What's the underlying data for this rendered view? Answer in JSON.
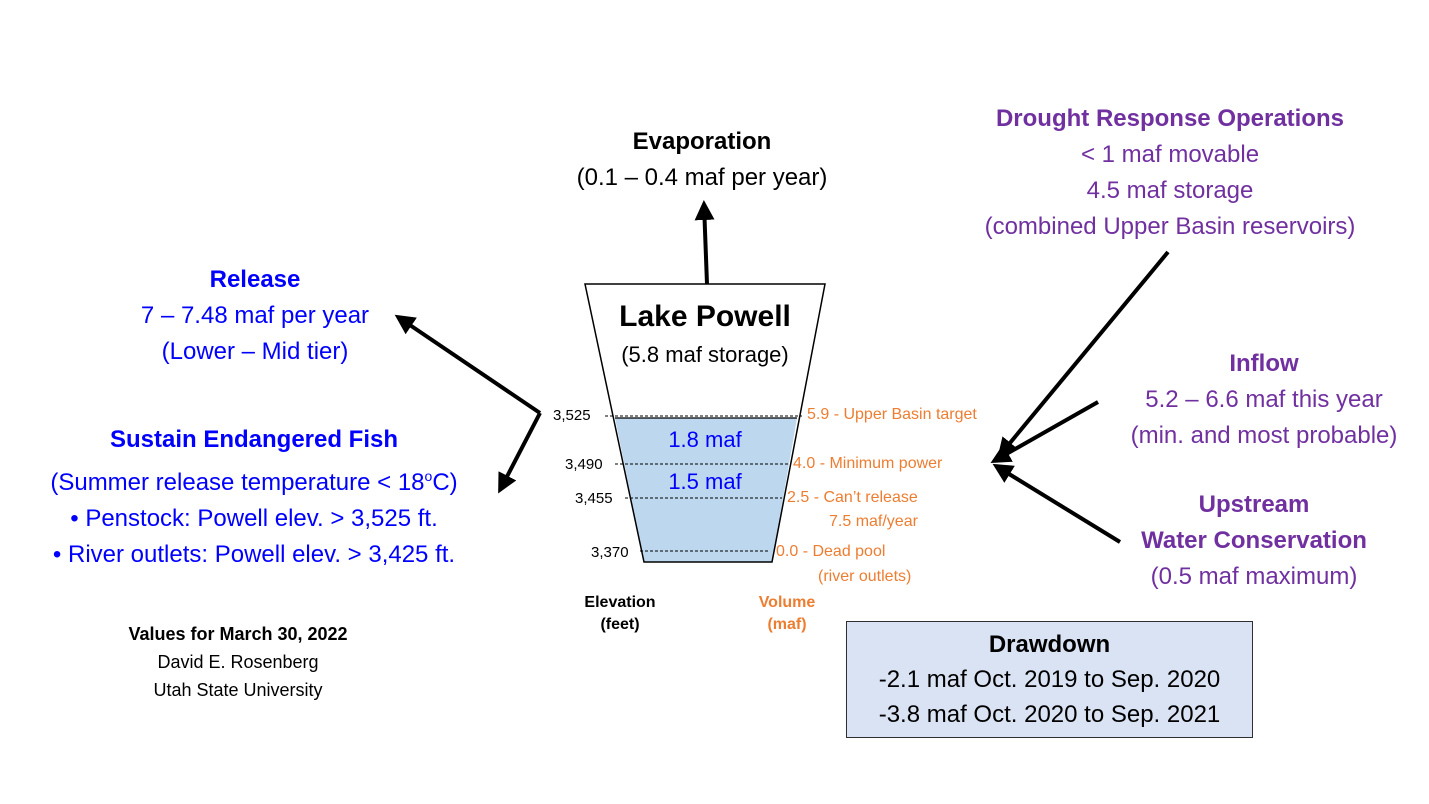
{
  "evaporation": {
    "title": "Evaporation",
    "detail": "(0.1 – 0.4 maf per year)"
  },
  "drought": {
    "title": "Drought Response Operations",
    "line1": "< 1 maf movable",
    "line2": "4.5 maf storage",
    "line3": "(combined Upper Basin reservoirs)"
  },
  "release": {
    "title": "Release",
    "line1": "7 – 7.48 maf per year",
    "line2": "(Lower – Mid tier)"
  },
  "fish": {
    "title": "Sustain Endangered Fish",
    "line1_pre": "(Summer release temperature < 18",
    "line1_sup": "o",
    "line1_post": "C)",
    "bullet1": "• Penstock: Powell elev. > 3,525 ft.",
    "bullet2": "• River outlets: Powell elev. > 3,425 ft."
  },
  "lake": {
    "title": "Lake Powell",
    "storage": "(5.8 maf storage)",
    "upper_volume": "1.8 maf",
    "lower_volume": "1.5 maf"
  },
  "elevations": [
    "3,525",
    "3,490",
    "3,455",
    "3,370"
  ],
  "volumes": {
    "v1": "5.9 - Upper Basin target",
    "v2": "4.0 - Minimum power",
    "v3a": "2.5 - Can’t release",
    "v3b": "7.5 maf/year",
    "v4a": "0.0 - Dead pool",
    "v4b": "(river outlets)"
  },
  "captions": {
    "elev1": "Elevation",
    "elev2": "(feet)",
    "vol1": "Volume",
    "vol2": "(maf)"
  },
  "inflow": {
    "title": "Inflow",
    "line1": "5.2 – 6.6 maf this year",
    "line2": "(min. and most probable)"
  },
  "conservation": {
    "title1": "Upstream",
    "title2": "Water Conservation",
    "line1": "(0.5 maf maximum)"
  },
  "credit": {
    "line1": "Values for March 30, 2022",
    "line2": "David E. Rosenberg",
    "line3": "Utah State University"
  },
  "drawdown": {
    "title": "Drawdown",
    "line1": "-2.1 maf Oct. 2019 to Sep. 2020",
    "line2": "-3.8 maf Oct. 2020 to Sep. 2021"
  },
  "colors": {
    "water": "#bdd7ee",
    "purple": "#7030a0",
    "blue": "#0000ff",
    "orange": "#ed7d31",
    "drawdown_fill": "#dae3f3"
  }
}
